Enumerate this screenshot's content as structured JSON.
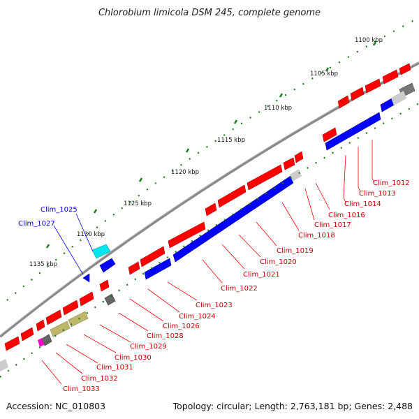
{
  "title": "Chlorobium limicola DSM 245, complete genome",
  "accession_text": "Accession: NC_010803",
  "summary_text": "Topology: circular; Length: 2,763,181 bp; Genes: 2,488",
  "colors": {
    "forward_cds": "#ff0000",
    "reverse_cds": "#0000ff",
    "backbone": "#999999",
    "ticks": "#1a7a1a",
    "rna": "#00e5ee",
    "pseudo": "#666666",
    "other": "#bdb76b",
    "misc": "#ff00cc",
    "gap": "#cccccc"
  },
  "scale_labels": [
    "1100 kbp",
    "1105 kbp",
    "1110 kbp",
    "1115 kbp",
    "1120 kbp",
    "1125 kbp",
    "1130 kbp",
    "1135 kbp"
  ],
  "gene_labels": [
    {
      "text": "Clim_1012",
      "strand": "forward"
    },
    {
      "text": "Clim_1013",
      "strand": "forward"
    },
    {
      "text": "Clim_1014",
      "strand": "forward"
    },
    {
      "text": "Clim_1016",
      "strand": "forward"
    },
    {
      "text": "Clim_1017",
      "strand": "forward"
    },
    {
      "text": "Clim_1018",
      "strand": "forward"
    },
    {
      "text": "Clim_1019",
      "strand": "forward"
    },
    {
      "text": "Clim_1020",
      "strand": "forward"
    },
    {
      "text": "Clim_1021",
      "strand": "forward"
    },
    {
      "text": "Clim_1022",
      "strand": "forward"
    },
    {
      "text": "Clim_1023",
      "strand": "forward"
    },
    {
      "text": "Clim_1024",
      "strand": "forward"
    },
    {
      "text": "Clim_1026",
      "strand": "forward"
    },
    {
      "text": "Clim_1028",
      "strand": "forward"
    },
    {
      "text": "Clim_1029",
      "strand": "forward"
    },
    {
      "text": "Clim_1030",
      "strand": "forward"
    },
    {
      "text": "Clim_1031",
      "strand": "forward"
    },
    {
      "text": "Clim_1032",
      "strand": "forward"
    },
    {
      "text": "Clim_1033",
      "strand": "forward"
    },
    {
      "text": "Clim_1025",
      "strand": "reverse"
    },
    {
      "text": "Clim_1027",
      "strand": "reverse"
    }
  ]
}
